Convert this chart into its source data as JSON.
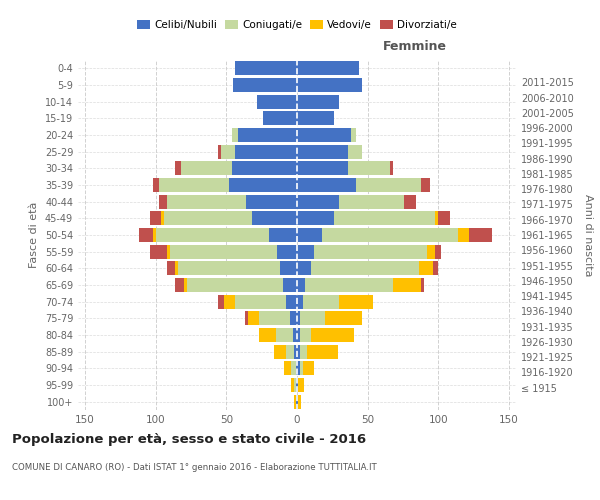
{
  "age_groups": [
    "100+",
    "95-99",
    "90-94",
    "85-89",
    "80-84",
    "75-79",
    "70-74",
    "65-69",
    "60-64",
    "55-59",
    "50-54",
    "45-49",
    "40-44",
    "35-39",
    "30-34",
    "25-29",
    "20-24",
    "15-19",
    "10-14",
    "5-9",
    "0-4"
  ],
  "birth_years": [
    "≤ 1915",
    "1916-1920",
    "1921-1925",
    "1926-1930",
    "1931-1935",
    "1936-1940",
    "1941-1945",
    "1946-1950",
    "1951-1955",
    "1956-1960",
    "1961-1965",
    "1966-1970",
    "1971-1975",
    "1976-1980",
    "1981-1985",
    "1986-1990",
    "1991-1995",
    "1996-2000",
    "2001-2005",
    "2006-2010",
    "2011-2015"
  ],
  "males": {
    "celibe": [
      1,
      1,
      1,
      2,
      3,
      5,
      8,
      10,
      12,
      14,
      20,
      32,
      36,
      48,
      46,
      44,
      42,
      24,
      28,
      45,
      44
    ],
    "coniugato": [
      0,
      1,
      3,
      6,
      12,
      22,
      36,
      68,
      72,
      76,
      80,
      62,
      56,
      50,
      36,
      10,
      4,
      0,
      0,
      0,
      0
    ],
    "vedovo": [
      1,
      2,
      5,
      8,
      12,
      8,
      8,
      2,
      2,
      2,
      2,
      2,
      0,
      0,
      0,
      0,
      0,
      0,
      0,
      0,
      0
    ],
    "divorziato": [
      0,
      0,
      0,
      0,
      0,
      2,
      4,
      6,
      6,
      12,
      10,
      8,
      6,
      4,
      4,
      2,
      0,
      0,
      0,
      0,
      0
    ]
  },
  "females": {
    "nubile": [
      1,
      1,
      2,
      2,
      2,
      2,
      4,
      6,
      10,
      12,
      18,
      26,
      30,
      42,
      36,
      36,
      38,
      26,
      30,
      46,
      44
    ],
    "coniugata": [
      0,
      0,
      2,
      5,
      8,
      18,
      26,
      62,
      76,
      80,
      96,
      72,
      46,
      46,
      30,
      10,
      4,
      0,
      0,
      0,
      0
    ],
    "vedova": [
      2,
      4,
      8,
      22,
      30,
      26,
      24,
      20,
      10,
      6,
      8,
      2,
      0,
      0,
      0,
      0,
      0,
      0,
      0,
      0,
      0
    ],
    "divorziata": [
      0,
      0,
      0,
      0,
      0,
      0,
      0,
      2,
      4,
      4,
      16,
      8,
      8,
      6,
      2,
      0,
      0,
      0,
      0,
      0,
      0
    ]
  },
  "colors": {
    "celibe": "#4472c4",
    "coniugato": "#c5d9a0",
    "vedovo": "#ffc000",
    "divorziato": "#c0504d"
  },
  "title": "Popolazione per età, sesso e stato civile - 2016",
  "subtitle": "COMUNE DI CANARO (RO) - Dati ISTAT 1° gennaio 2016 - Elaborazione TUTTITALIA.IT",
  "xlabel_right": "Femmine",
  "ylabel_left": "Fasce di età",
  "ylabel_right": "Anni di nascita",
  "xlim": 155,
  "legend_labels": [
    "Celibi/Nubili",
    "Coniugati/e",
    "Vedovi/e",
    "Divorziati/e"
  ],
  "background_color": "#ffffff",
  "grid_color": "#cccccc",
  "bar_height": 0.85
}
